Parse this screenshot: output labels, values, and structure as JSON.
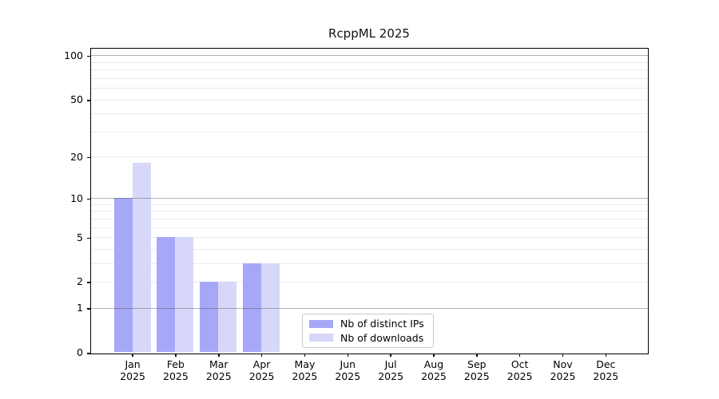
{
  "figure": {
    "title": "RcppML 2025"
  },
  "legend": {
    "items": [
      {
        "label": "Nb of distinct IPs",
        "color": "#a7a7f7"
      },
      {
        "label": "Nb of downloads",
        "color": "#d7d7f9"
      }
    ]
  },
  "chart_data": {
    "type": "bar",
    "title": "RcppML 2025",
    "categories": [
      "Jan 2025",
      "Feb 2025",
      "Mar 2025",
      "Apr 2025",
      "May 2025",
      "Jun 2025",
      "Jul 2025",
      "Aug 2025",
      "Sep 2025",
      "Oct 2025",
      "Nov 2025",
      "Dec 2025"
    ],
    "x_tick_labels": [
      [
        "Jan",
        "2025"
      ],
      [
        "Feb",
        "2025"
      ],
      [
        "Mar",
        "2025"
      ],
      [
        "Apr",
        "2025"
      ],
      [
        "May",
        "2025"
      ],
      [
        "Jun",
        "2025"
      ],
      [
        "Jul",
        "2025"
      ],
      [
        "Aug",
        "2025"
      ],
      [
        "Sep",
        "2025"
      ],
      [
        "Oct",
        "2025"
      ],
      [
        "Nov",
        "2025"
      ],
      [
        "Dec",
        "2025"
      ]
    ],
    "series": [
      {
        "name": "Nb of distinct IPs",
        "color": "#a7a7f7",
        "values": [
          10,
          5,
          2,
          3,
          0,
          0,
          0,
          0,
          0,
          0,
          0,
          0
        ]
      },
      {
        "name": "Nb of downloads",
        "color": "#d7d7f9",
        "values": [
          18,
          5,
          2,
          3,
          0,
          0,
          0,
          0,
          0,
          0,
          0,
          0
        ]
      }
    ],
    "xlabel": "",
    "ylabel": "",
    "y_axis": {
      "scale": "log1p",
      "range": [
        0,
        100
      ],
      "ticks": [
        100,
        50,
        20,
        10,
        5,
        2,
        1,
        0
      ],
      "major_gridlines": [
        1,
        10,
        100
      ],
      "minor_gridlines": [
        2,
        3,
        4,
        5,
        6,
        7,
        8,
        9,
        20,
        30,
        40,
        50,
        60,
        70,
        80,
        90
      ]
    },
    "grid": "on",
    "legend_position": "lower center-left"
  }
}
